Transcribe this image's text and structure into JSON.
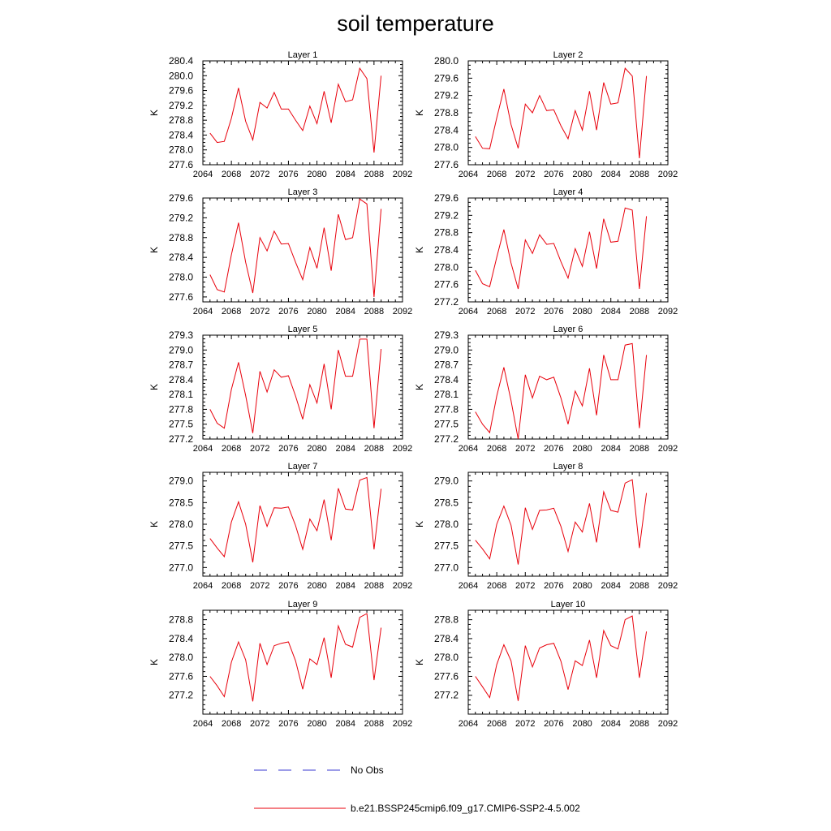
{
  "title": "soil temperature",
  "chart_data": {
    "type": "line",
    "x": [
      2065,
      2066,
      2067,
      2068,
      2069,
      2070,
      2071,
      2072,
      2073,
      2074,
      2075,
      2076,
      2077,
      2078,
      2079,
      2080,
      2081,
      2082,
      2083,
      2084,
      2085,
      2086,
      2087,
      2088,
      2089
    ],
    "xticks": [
      "2064",
      "2068",
      "2072",
      "2076",
      "2080",
      "2084",
      "2088",
      "2092"
    ],
    "xlim": [
      2064,
      2092
    ],
    "ylabel": "K",
    "line_color": "#e8000b",
    "obs_color": "#3a3ad0",
    "panels": [
      {
        "title": "Layer 1",
        "ylim": [
          277.6,
          280.4
        ],
        "yticks": [
          "277.6",
          "278.0",
          "278.4",
          "278.8",
          "279.2",
          "279.6",
          "280.0",
          "280.4"
        ],
        "values": [
          278.45,
          278.2,
          278.23,
          278.85,
          279.67,
          278.77,
          278.27,
          279.28,
          279.13,
          279.55,
          279.1,
          279.1,
          278.8,
          278.52,
          279.18,
          278.71,
          279.58,
          278.73,
          279.77,
          279.3,
          279.35,
          280.2,
          279.92,
          277.93,
          280.0
        ]
      },
      {
        "title": "Layer 2",
        "ylim": [
          277.6,
          280.0
        ],
        "yticks": [
          "277.6",
          "278.0",
          "278.4",
          "278.8",
          "279.2",
          "279.6",
          "280.0"
        ],
        "values": [
          278.25,
          277.98,
          277.97,
          278.68,
          279.35,
          278.53,
          277.98,
          279.0,
          278.8,
          279.2,
          278.85,
          278.87,
          278.5,
          278.2,
          278.85,
          278.4,
          279.3,
          278.4,
          279.5,
          279.0,
          279.03,
          279.83,
          279.65,
          277.75,
          279.65
        ]
      },
      {
        "title": "Layer 3",
        "ylim": [
          277.5,
          279.6
        ],
        "yticks": [
          "277.6",
          "278.0",
          "278.4",
          "278.8",
          "279.2",
          "279.6"
        ],
        "values": [
          278.05,
          277.75,
          277.7,
          278.45,
          279.1,
          278.3,
          277.68,
          278.8,
          278.53,
          278.93,
          278.67,
          278.68,
          278.3,
          277.95,
          278.6,
          278.18,
          279.0,
          278.13,
          279.27,
          278.76,
          278.8,
          279.58,
          279.48,
          277.6,
          279.38
        ]
      },
      {
        "title": "Layer 4",
        "ylim": [
          277.2,
          279.6
        ],
        "yticks": [
          "277.2",
          "277.6",
          "278.0",
          "278.4",
          "278.8",
          "279.2",
          "279.6"
        ],
        "values": [
          277.93,
          277.62,
          277.55,
          278.23,
          278.87,
          278.1,
          277.5,
          278.63,
          278.32,
          278.75,
          278.53,
          278.55,
          278.13,
          277.75,
          278.43,
          278.02,
          278.82,
          277.97,
          279.12,
          278.58,
          278.6,
          279.37,
          279.32,
          277.5,
          279.18
        ]
      },
      {
        "title": "Layer 5",
        "ylim": [
          277.2,
          279.3
        ],
        "yticks": [
          "277.2",
          "277.5",
          "277.8",
          "278.1",
          "278.4",
          "278.7",
          "279.0",
          "279.3"
        ],
        "values": [
          277.8,
          277.52,
          277.42,
          278.2,
          278.75,
          278.08,
          277.32,
          278.57,
          278.15,
          278.6,
          278.45,
          278.48,
          278.07,
          277.6,
          278.3,
          277.93,
          278.72,
          277.8,
          279.0,
          278.47,
          278.47,
          279.22,
          279.22,
          277.42,
          279.02
        ]
      },
      {
        "title": "Layer 6",
        "ylim": [
          277.2,
          279.3
        ],
        "yticks": [
          "277.2",
          "277.5",
          "277.8",
          "278.1",
          "278.4",
          "278.7",
          "279.0",
          "279.3"
        ],
        "values": [
          277.75,
          277.5,
          277.33,
          278.07,
          278.65,
          277.98,
          277.2,
          278.5,
          278.03,
          278.47,
          278.4,
          278.45,
          278.03,
          277.5,
          278.17,
          277.87,
          278.63,
          277.68,
          278.9,
          278.4,
          278.4,
          279.1,
          279.13,
          277.42,
          278.9
        ]
      },
      {
        "title": "Layer 7",
        "ylim": [
          276.8,
          279.2
        ],
        "yticks": [
          "277.0",
          "277.5",
          "278.0",
          "278.5",
          "279.0"
        ],
        "values": [
          277.67,
          277.45,
          277.25,
          278.05,
          278.52,
          278.0,
          277.12,
          278.43,
          277.95,
          278.38,
          278.37,
          278.4,
          277.97,
          277.42,
          278.12,
          277.85,
          278.57,
          277.63,
          278.83,
          278.35,
          278.33,
          279.02,
          279.08,
          277.42,
          278.82
        ]
      },
      {
        "title": "Layer 8",
        "ylim": [
          276.8,
          279.2
        ],
        "yticks": [
          "277.0",
          "277.5",
          "278.0",
          "278.5",
          "279.0"
        ],
        "values": [
          277.63,
          277.43,
          277.2,
          278.0,
          278.42,
          277.98,
          277.07,
          278.38,
          277.88,
          278.32,
          278.33,
          278.37,
          277.95,
          277.37,
          278.05,
          277.82,
          278.48,
          277.58,
          278.75,
          278.32,
          278.28,
          278.95,
          279.03,
          277.45,
          278.72
        ]
      },
      {
        "title": "Layer 9",
        "ylim": [
          276.8,
          279.0
        ],
        "yticks": [
          "277.2",
          "277.6",
          "278.0",
          "278.4",
          "278.8"
        ],
        "values": [
          277.6,
          277.4,
          277.17,
          277.9,
          278.33,
          277.95,
          277.07,
          278.3,
          277.85,
          278.25,
          278.3,
          278.33,
          277.93,
          277.33,
          277.97,
          277.85,
          278.42,
          277.57,
          278.67,
          278.28,
          278.22,
          278.85,
          278.93,
          277.52,
          278.63
        ]
      },
      {
        "title": "Layer 10",
        "ylim": [
          276.8,
          279.0
        ],
        "yticks": [
          "277.2",
          "277.6",
          "278.0",
          "278.4",
          "278.8"
        ],
        "values": [
          277.6,
          277.38,
          277.15,
          277.85,
          278.27,
          277.93,
          277.08,
          278.25,
          277.8,
          278.2,
          278.27,
          278.3,
          277.92,
          277.32,
          277.93,
          277.83,
          278.37,
          277.57,
          278.57,
          278.25,
          278.18,
          278.8,
          278.88,
          277.57,
          278.55
        ]
      }
    ],
    "legend": [
      {
        "label": "No Obs",
        "style": "dashed"
      },
      {
        "label": "b.e21.BSSP245cmip6.f09_g17.CMIP6-SSP2-4.5.002",
        "style": "solid"
      }
    ]
  }
}
